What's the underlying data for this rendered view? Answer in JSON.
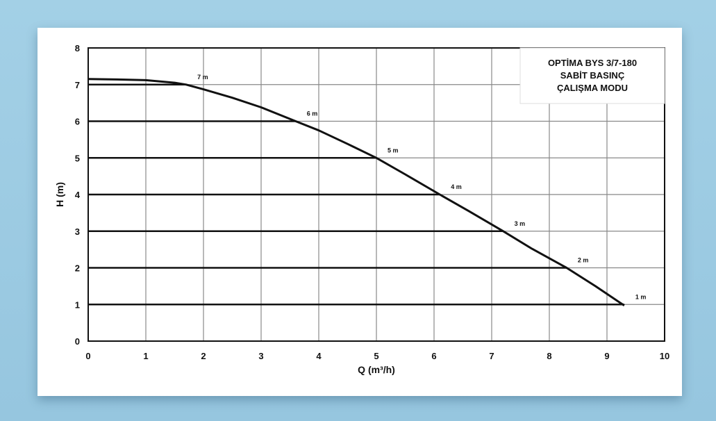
{
  "chart_data": {
    "type": "line",
    "title": [
      "OPTİMA BYS 3/7-180",
      "SABİT BASINÇ",
      "ÇALIŞMA MODU"
    ],
    "xlabel": "Q (m³/h)",
    "ylabel": "H (m)",
    "xlim": [
      0,
      10
    ],
    "ylim": [
      0,
      8
    ],
    "xticks": [
      "0",
      "1",
      "2",
      "3",
      "4",
      "5",
      "6",
      "7",
      "8",
      "9",
      "10"
    ],
    "yticks": [
      "0",
      "1",
      "2",
      "3",
      "4",
      "5",
      "6",
      "7",
      "8"
    ],
    "grid": true,
    "pump_curve": {
      "x": [
        0,
        0.5,
        1.0,
        1.5,
        1.7,
        2.0,
        2.5,
        3.0,
        3.6,
        4.0,
        4.5,
        5.0,
        5.5,
        6.1,
        6.6,
        7.2,
        7.7,
        8.3,
        8.8,
        9.3
      ],
      "y": [
        7.15,
        7.14,
        7.12,
        7.05,
        7.0,
        6.87,
        6.64,
        6.38,
        6.0,
        5.75,
        5.38,
        5.0,
        4.55,
        4.0,
        3.55,
        3.0,
        2.52,
        2.0,
        1.5,
        0.97
      ]
    },
    "head_lines": [
      {
        "label": "7 m",
        "h": 7,
        "x_end": 1.7
      },
      {
        "label": "6 m",
        "h": 6,
        "x_end": 3.6
      },
      {
        "label": "5 m",
        "h": 5,
        "x_end": 5.0
      },
      {
        "label": "4 m",
        "h": 4,
        "x_end": 6.1
      },
      {
        "label": "3 m",
        "h": 3,
        "x_end": 7.2
      },
      {
        "label": "2 m",
        "h": 2,
        "x_end": 8.3
      },
      {
        "label": "1 m",
        "h": 1,
        "x_end": 9.3
      }
    ],
    "line_color": "#111111",
    "grid_color": "#888888"
  }
}
